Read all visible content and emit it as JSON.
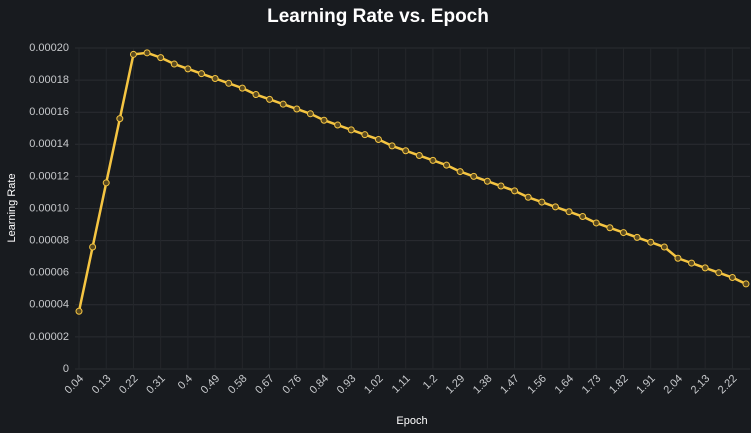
{
  "chart_data": {
    "type": "line",
    "title": "Learning Rate vs. Epoch",
    "x_label": "Epoch",
    "y_label": "Learning Rate",
    "categories": [
      "0.04",
      null,
      "0.13",
      null,
      "0.22",
      null,
      "0.31",
      null,
      "0.4",
      null,
      "0.49",
      null,
      "0.58",
      null,
      "0.67",
      null,
      "0.76",
      null,
      "0.84",
      null,
      "0.93",
      null,
      "1.02",
      null,
      "1.11",
      null,
      "1.2",
      null,
      "1.29",
      null,
      "1.38",
      null,
      "1.47",
      null,
      "1.56",
      null,
      "1.64",
      null,
      "1.73",
      null,
      "1.82",
      null,
      "1.91",
      null,
      "2.04",
      null,
      "2.13",
      null,
      "2.22",
      null
    ],
    "series": [
      {
        "name": "Learning Rate",
        "color": "#f5c542",
        "values": [
          3.6e-05,
          7.6e-05,
          0.000116,
          0.000156,
          0.000196,
          0.000197,
          0.000194,
          0.00019,
          0.000187,
          0.000184,
          0.000181,
          0.000178,
          0.000175,
          0.000171,
          0.000168,
          0.000165,
          0.000162,
          0.000159,
          0.000155,
          0.000152,
          0.000149,
          0.000146,
          0.000143,
          0.000139,
          0.000136,
          0.000133,
          0.00013,
          0.000127,
          0.000123,
          0.00012,
          0.000117,
          0.000114,
          0.000111,
          0.000107,
          0.000104,
          0.000101,
          9.8e-05,
          9.5e-05,
          9.1e-05,
          8.8e-05,
          8.5e-05,
          8.2e-05,
          7.9e-05,
          7.6e-05,
          6.9e-05,
          6.6e-05,
          6.3e-05,
          6e-05,
          5.7e-05,
          5.3e-05
        ]
      }
    ],
    "ylim": [
      0,
      0.0002
    ],
    "yticks": [
      0,
      {
        "value": 2e-05,
        "label": "0.00002"
      },
      {
        "value": 4e-05,
        "label": "0.00004"
      },
      {
        "value": 6e-05,
        "label": "0.00006"
      },
      {
        "value": 8e-05,
        "label": "0.00008"
      },
      {
        "value": 0.0001,
        "label": "0.00010"
      },
      {
        "value": 0.00012,
        "label": "0.00012"
      },
      {
        "value": 0.00014,
        "label": "0.00014"
      },
      {
        "value": 0.00016,
        "label": "0.00016"
      },
      {
        "value": 0.00018,
        "label": "0.00018"
      },
      {
        "value": 0.0002,
        "label": "0.00020"
      }
    ],
    "grid": true,
    "markers": true
  }
}
